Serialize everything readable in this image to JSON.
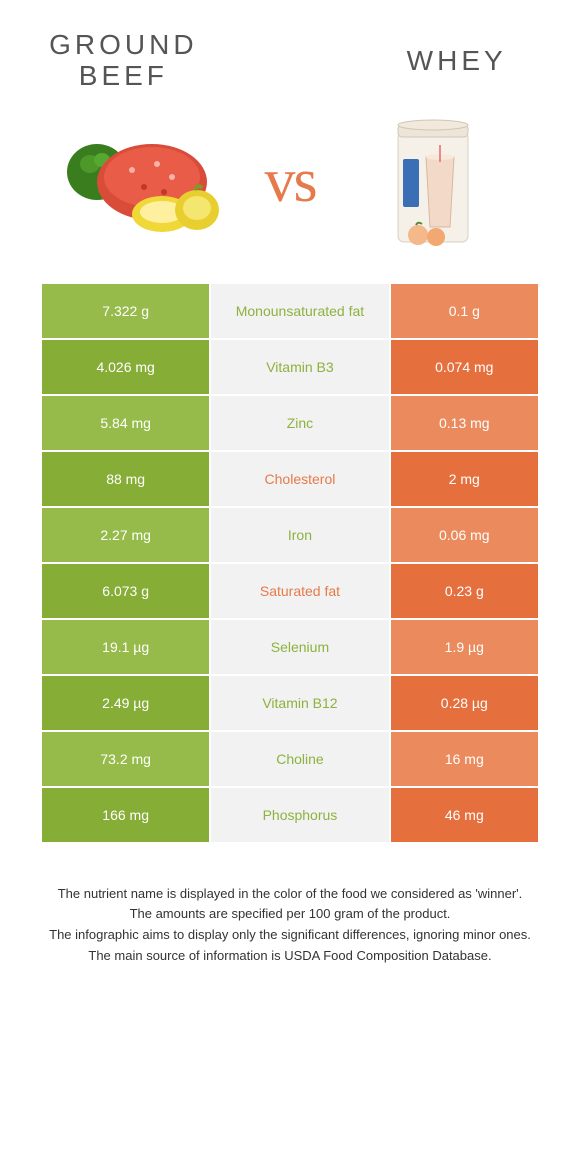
{
  "colors": {
    "green": "#8cb23f",
    "orange": "#e67a4a",
    "row_even_green": "#96bb4a",
    "row_odd_green": "#86ad36",
    "row_even_orange": "#eb8a5d",
    "row_odd_orange": "#e56f3d",
    "mid_bg": "#f2f2f2"
  },
  "title_left_line1": "GROUND",
  "title_left_line2": "BEEF",
  "title_right": "WHEY",
  "vs": "vs",
  "rows": [
    {
      "left": "7.322 g",
      "name": "Monounsaturated fat",
      "right": "0.1 g",
      "winner": "green"
    },
    {
      "left": "4.026 mg",
      "name": "Vitamin B3",
      "right": "0.074 mg",
      "winner": "green"
    },
    {
      "left": "5.84 mg",
      "name": "Zinc",
      "right": "0.13 mg",
      "winner": "green"
    },
    {
      "left": "88 mg",
      "name": "Cholesterol",
      "right": "2 mg",
      "winner": "orange"
    },
    {
      "left": "2.27 mg",
      "name": "Iron",
      "right": "0.06 mg",
      "winner": "green"
    },
    {
      "left": "6.073 g",
      "name": "Saturated fat",
      "right": "0.23 g",
      "winner": "orange"
    },
    {
      "left": "19.1 µg",
      "name": "Selenium",
      "right": "1.9 µg",
      "winner": "green"
    },
    {
      "left": "2.49 µg",
      "name": "Vitamin B12",
      "right": "0.28 µg",
      "winner": "green"
    },
    {
      "left": "73.2 mg",
      "name": "Choline",
      "right": "16 mg",
      "winner": "green"
    },
    {
      "left": "166 mg",
      "name": "Phosphorus",
      "right": "46 mg",
      "winner": "green"
    }
  ],
  "footer": [
    "The nutrient name is displayed in the color of the food we considered as 'winner'.",
    "The amounts are specified per 100 gram of the product.",
    "The infographic aims to display only the significant differences, ignoring minor ones.",
    "The main source of information is USDA Food Composition Database."
  ]
}
